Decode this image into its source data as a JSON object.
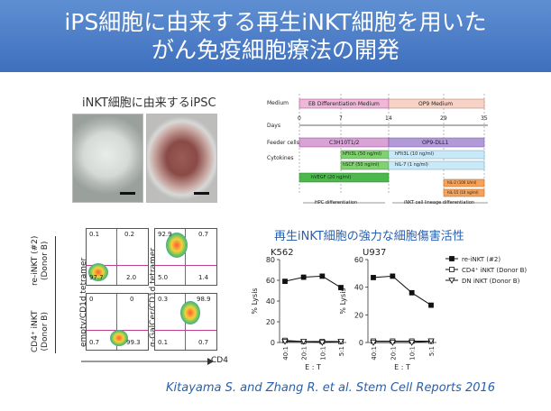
{
  "title": {
    "line1": "iPS細胞に由来する再生iNKT細胞を用いた",
    "line2": "がん免疫細胞療法の開発"
  },
  "micrograph_caption": "iNKT細胞に由来するiPSC",
  "protocol": {
    "row_labels": [
      "Medium",
      "Days",
      "Feeder cells",
      "Cytokines"
    ],
    "medium_1": "EB Differentiation Medium",
    "medium_2": "OP9 Medium",
    "days": [
      "0",
      "7",
      "14",
      "29",
      "35"
    ],
    "feeder_1": "C3H10T1/2",
    "feeder_2": "OP9-DLL1",
    "cytokines": [
      "hFlt3L (50 ng/ml)",
      "hSCF (50 ng/ml)",
      "hVEGF (20 ng/ml)",
      "hFlt3L (10 ng/ml)",
      "hIL-7 (1 ng/ml)",
      "hIL-2 (100 U/ml)",
      "hIL-15 (10 ng/ml)"
    ],
    "phase_1": "HPC differentiation",
    "phase_2": "iNKT cell lineage differentiation"
  },
  "facs": {
    "row_labels": [
      "re-iNKT (#2)\n(Donor B)",
      "CD4⁺ iNKT\n(Donor B)"
    ],
    "y_label_left": "empty/CD1d tetramer",
    "y_label_right": "α-GalCer/CD1d tetramer",
    "x_label": "CD4",
    "panels": [
      {
        "q": [
          "0.1",
          "0.2",
          "97.7",
          "2.0"
        ]
      },
      {
        "q": [
          "92.9",
          "0.7",
          "5.0",
          "1.4"
        ]
      },
      {
        "q": [
          "0",
          "0",
          "0.7",
          "99.3"
        ]
      },
      {
        "q": [
          "0.3",
          "98.9",
          "0.1",
          "0.7"
        ]
      }
    ]
  },
  "cytotox_title": "再生iNKT細胞の強力な細胞傷害活性",
  "chart_data": [
    {
      "type": "line",
      "title": "K562",
      "ylabel": "% Lysis",
      "xlabel": "E : T",
      "categories": [
        "40:1",
        "20:1",
        "10:1",
        "5:1"
      ],
      "ylim": [
        0,
        80
      ],
      "yticks": [
        "0",
        "20",
        "40",
        "60",
        "80"
      ],
      "series": [
        {
          "name": "re-iNKT (#2)",
          "values": [
            59,
            63,
            64,
            53
          ]
        },
        {
          "name": "CD4⁺ iNKT (Donor B)",
          "values": [
            2,
            1,
            1,
            1
          ]
        },
        {
          "name": "DN iNKT (Donor B)",
          "values": [
            1,
            1,
            0,
            1
          ]
        }
      ]
    },
    {
      "type": "line",
      "title": "U937",
      "ylabel": "% Lysis",
      "xlabel": "E : T",
      "categories": [
        "40:1",
        "20:1",
        "10:1",
        "5:1"
      ],
      "ylim": [
        0,
        60
      ],
      "yticks": [
        "0",
        "20",
        "40",
        "60"
      ],
      "series": [
        {
          "name": "re-iNKT (#2)",
          "values": [
            47,
            48,
            36,
            27
          ]
        },
        {
          "name": "CD4⁺ iNKT (Donor B)",
          "values": [
            1,
            1,
            1,
            1
          ]
        },
        {
          "name": "DN iNKT (Donor B)",
          "values": [
            0,
            0,
            0,
            1
          ]
        }
      ]
    }
  ],
  "citation": "Kitayama S. and Zhang R. et al. Stem Cell Reports 2016"
}
